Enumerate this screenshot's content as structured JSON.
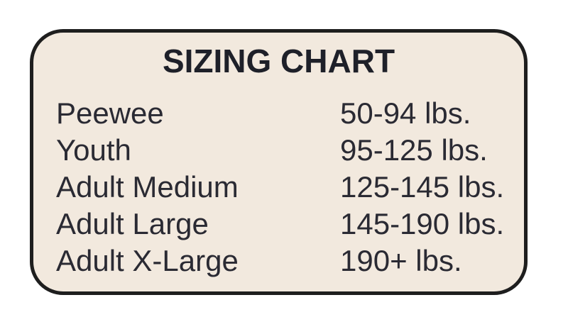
{
  "panel": {
    "title": "SIZING CHART"
  },
  "rows": [
    {
      "label": "Peewee",
      "value": "50-94 lbs."
    },
    {
      "label": "Youth",
      "value": "95-125 lbs."
    },
    {
      "label": "Adult Medium",
      "value": "125-145 lbs."
    },
    {
      "label": "Adult Large",
      "value": "145-190 lbs."
    },
    {
      "label": "Adult X-Large",
      "value": "190+ lbs."
    }
  ],
  "colors": {
    "page_background": "#ffffff",
    "panel_background": "#f2e9de",
    "panel_border": "#1e1e1e",
    "title_text": "#1e2029",
    "body_text": "#2a2a33"
  },
  "chart_data": {
    "type": "table",
    "title": "SIZING CHART",
    "rows": [
      [
        "Peewee",
        "50-94 lbs."
      ],
      [
        "Youth",
        "95-125 lbs."
      ],
      [
        "Adult Medium",
        "125-145 lbs."
      ],
      [
        "Adult Large",
        "145-190 lbs."
      ],
      [
        "Adult X-Large",
        "190+ lbs."
      ]
    ]
  }
}
